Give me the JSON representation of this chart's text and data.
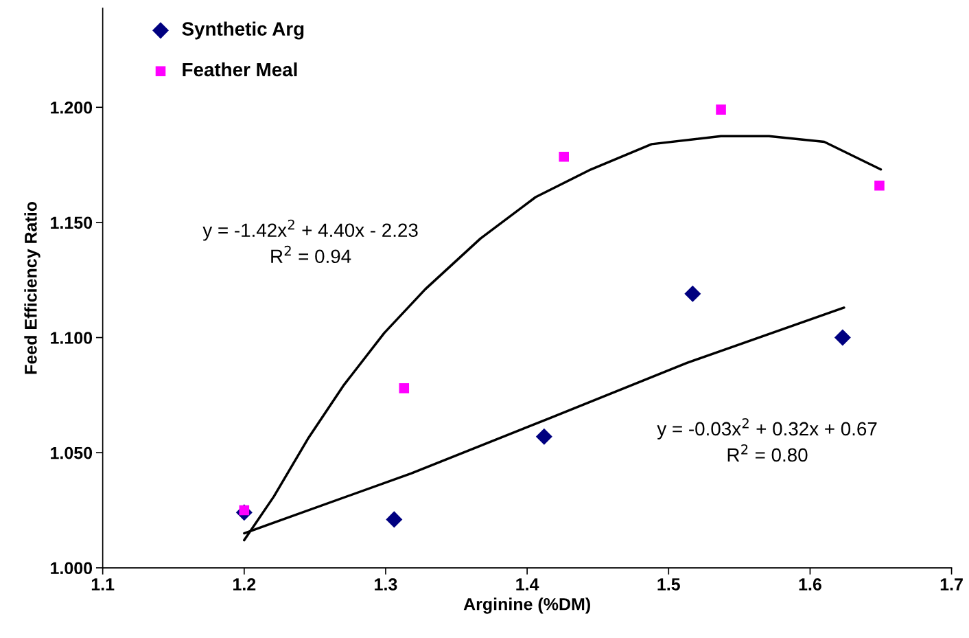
{
  "chart_data": {
    "type": "scatter",
    "xlabel": "Arginine (%DM)",
    "ylabel": "Feed Efficiency Ratio",
    "xlim": [
      1.1,
      1.7
    ],
    "xticks": [
      1.1,
      1.2,
      1.3,
      1.4,
      1.5,
      1.6,
      1.7
    ],
    "ylim": [
      1.0,
      1.243
    ],
    "yticks": [
      {
        "value": 1.0,
        "label": "1.000"
      },
      {
        "value": 1.05,
        "label": "1.050"
      },
      {
        "value": 1.1,
        "label": "1.100"
      },
      {
        "value": 1.15,
        "label": "1.150"
      },
      {
        "value": 1.2,
        "label": "1.200"
      }
    ],
    "grid": false,
    "legend": "top left",
    "series": [
      {
        "name": "Synthetic Arg",
        "marker": "diamond",
        "color": "#000080",
        "x": [
          1.2,
          1.306,
          1.412,
          1.517,
          1.623
        ],
        "values": [
          1.024,
          1.021,
          1.057,
          1.119,
          1.1
        ]
      },
      {
        "name": "Feather Meal",
        "marker": "square",
        "color": "#ff00ff",
        "x": [
          1.2,
          1.313,
          1.426,
          1.537,
          1.649
        ],
        "values": [
          1.025,
          1.078,
          1.1785,
          1.199,
          1.166
        ]
      },
      {
        "type": "line",
        "color": "#000000",
        "x": [
          1.2,
          1.221,
          1.245,
          1.27,
          1.299,
          1.328,
          1.367,
          1.406,
          1.445,
          1.488,
          1.537,
          1.571,
          1.61,
          1.65
        ],
        "values": [
          1.012,
          1.031,
          1.056,
          1.079,
          1.102,
          1.121,
          1.143,
          1.161,
          1.173,
          1.184,
          1.1875,
          1.1875,
          1.185,
          1.173
        ]
      },
      {
        "type": "line",
        "color": "#000000",
        "x": [
          1.2,
          1.318,
          1.416,
          1.513,
          1.624
        ],
        "values": [
          1.015,
          1.041,
          1.065,
          1.089,
          1.113
        ]
      }
    ],
    "annotations": [
      "y = -1.42x$^{2}$ + 4.40x - 2.23\nR$^{2}$ = 0.94",
      "y = -0.03x$^{2}$ + 0.32x + 0.67\nR$^{2}$ = 0.80"
    ]
  }
}
